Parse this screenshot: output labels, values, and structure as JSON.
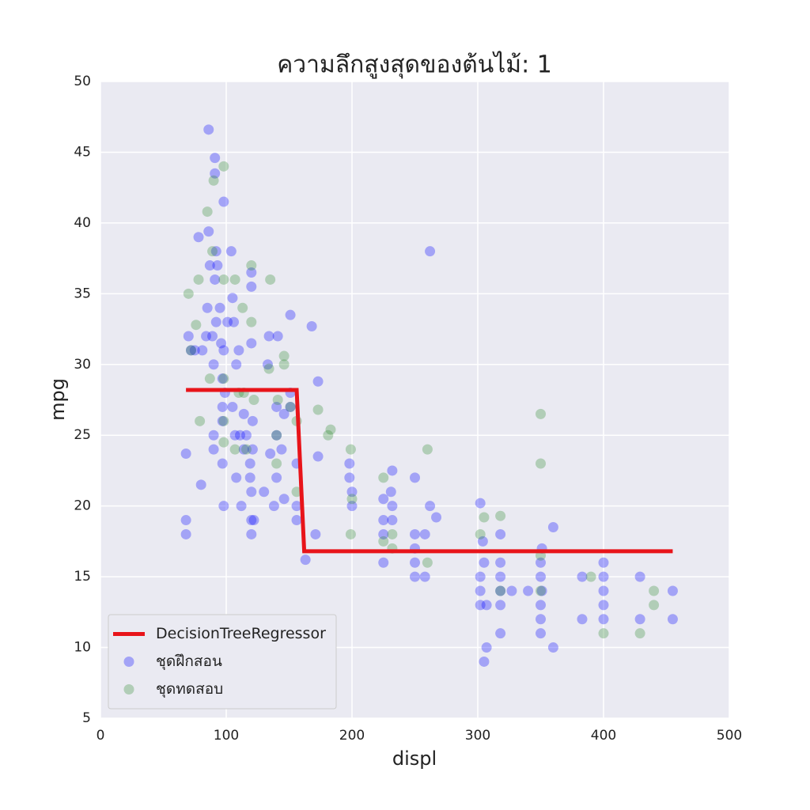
{
  "chart_data": {
    "type": "scatter",
    "title": "ความลึกสูงสุดของต้นไม้: 1",
    "x_label": "displ",
    "y_label": "mpg",
    "xlim": [
      0,
      500
    ],
    "xticks": [
      0,
      100,
      200,
      300,
      400,
      500
    ],
    "ylim": [
      5,
      50
    ],
    "yticks": [
      5,
      10,
      15,
      20,
      25,
      30,
      35,
      40,
      45,
      50
    ],
    "grid": true,
    "legend": "lower left",
    "series": [
      {
        "name": "DecisionTreeRegressor",
        "type": "line",
        "color": "#e8141a",
        "x": [
          68,
          156,
          162,
          455
        ],
        "values": [
          28.2,
          28.2,
          16.8,
          16.8
        ]
      },
      {
        "name": "ชุดฝึกสอน",
        "type": "scatter",
        "color": "#0000ff",
        "x": [
          68,
          68,
          68,
          70,
          72,
          75,
          78,
          80,
          81,
          84,
          85,
          86,
          86,
          87,
          89,
          90,
          90,
          90,
          91,
          91,
          91,
          92,
          92,
          93,
          95,
          96,
          97,
          97,
          97,
          97,
          98,
          98,
          98,
          99,
          101,
          104,
          105,
          105,
          106,
          107,
          108,
          108,
          110,
          111,
          112,
          114,
          114,
          116,
          119,
          119,
          120,
          120,
          120,
          120,
          120,
          120,
          121,
          121,
          122,
          130,
          133,
          134,
          135,
          138,
          140,
          140,
          140,
          141,
          144,
          146,
          146,
          151,
          151,
          151,
          156,
          156,
          156,
          163,
          168,
          171,
          173,
          173,
          198,
          198,
          200,
          200,
          225,
          225,
          225,
          225,
          231,
          232,
          232,
          232,
          250,
          250,
          250,
          250,
          250,
          258,
          258,
          262,
          262,
          267,
          302,
          302,
          302,
          302,
          304,
          305,
          305,
          307,
          307,
          318,
          318,
          318,
          318,
          318,
          318,
          327,
          340,
          350,
          350,
          350,
          350,
          350,
          351,
          351,
          360,
          360,
          383,
          383,
          400,
          400,
          400,
          400,
          400,
          429,
          429,
          455,
          455
        ],
        "values": [
          18,
          19,
          23.7,
          32,
          31,
          31,
          39,
          21.5,
          31,
          32,
          34,
          39.4,
          46.6,
          37,
          32,
          25,
          24,
          30,
          44.6,
          43.5,
          36,
          38,
          33,
          37,
          34,
          31.5,
          26,
          27,
          29,
          23,
          20,
          41.5,
          31,
          28,
          33,
          38,
          34.7,
          27,
          33,
          25,
          22,
          30,
          31,
          25,
          20,
          24,
          26.5,
          25,
          23,
          22,
          19,
          21,
          35.5,
          36.5,
          31.5,
          18,
          24,
          26,
          19,
          21,
          30,
          32,
          23.7,
          20,
          27,
          25,
          22,
          32,
          24,
          26.5,
          20.5,
          33.5,
          27,
          28,
          23,
          19,
          20,
          16.2,
          32.7,
          18,
          28.8,
          23.5,
          23,
          22,
          21,
          20,
          16,
          19,
          18,
          20.5,
          21,
          19,
          20,
          22.5,
          22,
          18,
          17,
          16,
          15,
          15,
          18,
          38,
          20,
          19.2,
          20.2,
          15,
          14,
          13,
          17.5,
          16,
          9,
          13,
          10,
          14,
          15,
          16,
          18,
          13,
          11,
          14,
          14,
          15,
          13,
          12,
          16,
          11,
          14,
          17,
          10,
          18.5,
          12,
          15,
          16,
          15,
          14,
          13,
          12,
          15,
          12,
          14,
          12
        ]
      },
      {
        "name": "ชุดทดสอบ",
        "type": "scatter",
        "color": "#2e8b2e",
        "x": [
          70,
          72,
          76,
          78,
          79,
          85,
          87,
          89,
          90,
          98,
          98,
          98,
          98,
          98,
          107,
          107,
          110,
          113,
          114,
          116,
          120,
          120,
          122,
          134,
          135,
          140,
          140,
          141,
          146,
          146,
          151,
          156,
          156,
          173,
          181,
          183,
          199,
          199,
          200,
          225,
          225,
          232,
          232,
          260,
          260,
          302,
          305,
          318,
          318,
          350,
          350,
          350,
          350,
          390,
          400,
          429,
          440,
          440
        ],
        "values": [
          35,
          31,
          32.8,
          36,
          26,
          40.8,
          29,
          38,
          43,
          44,
          36,
          29,
          26,
          24.5,
          36,
          24,
          28,
          34,
          28,
          24,
          37,
          33,
          27.5,
          29.7,
          36,
          23,
          25,
          27.5,
          30.6,
          30,
          27,
          26,
          21,
          26.8,
          25,
          25.4,
          24,
          18,
          20.5,
          22,
          17.5,
          17,
          18,
          24,
          16,
          18,
          19.2,
          19.3,
          14,
          26.5,
          23,
          16.5,
          14,
          15,
          11,
          11,
          13,
          14
        ]
      }
    ]
  }
}
